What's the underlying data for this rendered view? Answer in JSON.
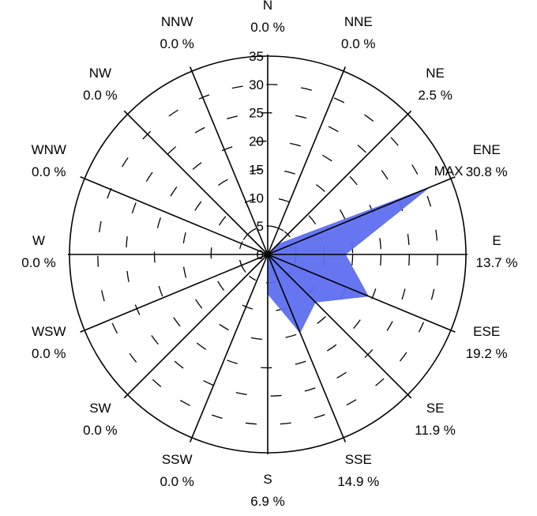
{
  "chart_data": {
    "type": "polar-area",
    "title": "",
    "r_max": 35,
    "r_ticks": [
      0,
      5,
      10,
      15,
      20,
      25,
      30,
      35
    ],
    "r_tick_labels": [
      "0",
      "5",
      "10",
      "15",
      "20",
      "25",
      "30",
      "35"
    ],
    "max_label": "MAX",
    "fill_color": "#5e6ff0",
    "directions": [
      {
        "dir": "N",
        "pct": "0.0 %",
        "value": 0.0
      },
      {
        "dir": "NNE",
        "pct": "0.0 %",
        "value": 0.0
      },
      {
        "dir": "NE",
        "pct": "2.5 %",
        "value": 2.5
      },
      {
        "dir": "ENE",
        "pct": "30.8 %",
        "value": 30.8
      },
      {
        "dir": "E",
        "pct": "13.7 %",
        "value": 13.7
      },
      {
        "dir": "ESE",
        "pct": "19.2 %",
        "value": 19.2
      },
      {
        "dir": "SE",
        "pct": "11.9 %",
        "value": 11.9
      },
      {
        "dir": "SSE",
        "pct": "14.9 %",
        "value": 14.9
      },
      {
        "dir": "S",
        "pct": "6.9 %",
        "value": 6.9
      },
      {
        "dir": "SSW",
        "pct": "0.0 %",
        "value": 0.0
      },
      {
        "dir": "SW",
        "pct": "0.0 %",
        "value": 0.0
      },
      {
        "dir": "WSW",
        "pct": "0.0 %",
        "value": 0.0
      },
      {
        "dir": "W",
        "pct": "0.0 %",
        "value": 0.0
      },
      {
        "dir": "WNW",
        "pct": "0.0 %",
        "value": 0.0
      },
      {
        "dir": "NW",
        "pct": "0.0 %",
        "value": 0.0
      },
      {
        "dir": "NNW",
        "pct": "0.0 %",
        "value": 0.0
      }
    ]
  }
}
